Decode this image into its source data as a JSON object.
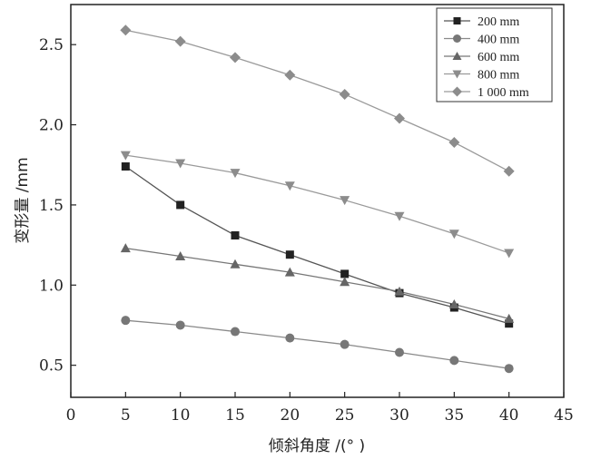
{
  "chart_data": {
    "type": "line",
    "xlabel": "倾斜角度 /(° )",
    "ylabel": "变形量 /mm",
    "xlim": [
      0,
      45
    ],
    "ylim": [
      0.3,
      2.75
    ],
    "xticks": [
      0,
      5,
      10,
      15,
      20,
      25,
      30,
      35,
      40,
      45
    ],
    "yticks": [
      0.5,
      1.0,
      1.5,
      2.0,
      2.5
    ],
    "xtick_labels": [
      "0",
      "5",
      "10",
      "15",
      "20",
      "25",
      "30",
      "35",
      "40",
      "45"
    ],
    "ytick_labels": [
      "0.5",
      "1.0",
      "1.5",
      "2.0",
      "2.5"
    ],
    "x": [
      5,
      10,
      15,
      20,
      25,
      30,
      35,
      40
    ],
    "legend_position": "top-right",
    "grid": false,
    "series": [
      {
        "name": "200 mm",
        "marker": "square",
        "color": "#222222",
        "line_color": "#555555",
        "values": [
          1.74,
          1.5,
          1.31,
          1.19,
          1.07,
          0.95,
          0.86,
          0.76
        ]
      },
      {
        "name": "400 mm",
        "marker": "circle",
        "color": "#777777",
        "line_color": "#8a8a8a",
        "values": [
          0.78,
          0.75,
          0.71,
          0.67,
          0.63,
          0.58,
          0.53,
          0.48
        ]
      },
      {
        "name": "600 mm",
        "marker": "triangle-up",
        "color": "#666666",
        "line_color": "#777777",
        "values": [
          1.23,
          1.18,
          1.13,
          1.08,
          1.02,
          0.96,
          0.88,
          0.79
        ]
      },
      {
        "name": "800 mm",
        "marker": "triangle-down",
        "color": "#8c8c8c",
        "line_color": "#9a9a9a",
        "values": [
          1.81,
          1.76,
          1.7,
          1.62,
          1.53,
          1.43,
          1.32,
          1.2
        ]
      },
      {
        "name": "1 000 mm",
        "marker": "diamond",
        "color": "#8c8c8c",
        "line_color": "#9a9a9a",
        "values": [
          2.59,
          2.52,
          2.42,
          2.31,
          2.19,
          2.04,
          1.89,
          1.71
        ]
      }
    ]
  }
}
